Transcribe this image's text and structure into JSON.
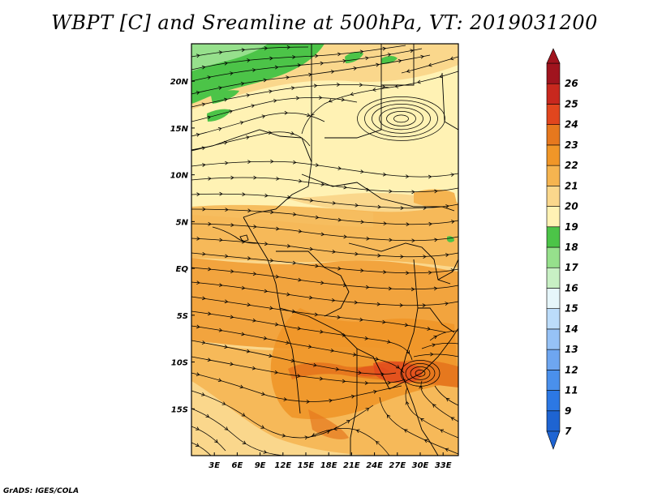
{
  "title": "WBPT [C] and Sreamline at 500hPa, VT: 2019031200",
  "footer": "GrADS: IGES/COLA",
  "lat_labels": [
    "20N",
    "15N",
    "10N",
    "5N",
    "EQ",
    "5S",
    "10S",
    "15S"
  ],
  "lat_values": [
    20,
    15,
    10,
    5,
    0,
    -5,
    -10,
    -15
  ],
  "lon_labels": [
    "3E",
    "6E",
    "9E",
    "12E",
    "15E",
    "18E",
    "21E",
    "24E",
    "27E",
    "30E",
    "33E"
  ],
  "lon_values": [
    3,
    6,
    9,
    12,
    15,
    18,
    21,
    24,
    27,
    30,
    33
  ],
  "colorbar": {
    "labels": [
      "7",
      "9",
      "11",
      "12",
      "13",
      "14",
      "15",
      "16",
      "17",
      "18",
      "19",
      "20",
      "21",
      "22",
      "23",
      "24",
      "25",
      "26"
    ],
    "colors": [
      "#1e64d2",
      "#2c78e4",
      "#4a90ec",
      "#6ea6f0",
      "#96c2f6",
      "#bcdcfa",
      "#e6f6fa",
      "#c8f0c4",
      "#96e08c",
      "#4cc448",
      "#fff2b4",
      "#fad78c",
      "#f5b450",
      "#f09628",
      "#e6781e",
      "#e1461e",
      "#c8281e",
      "#a0141e"
    ]
  },
  "features": {
    "extent": {
      "lon": [
        0,
        35
      ],
      "lat": [
        -20,
        24
      ]
    },
    "vortices": [
      {
        "name": "north-anticyclone",
        "lon": 27.5,
        "lat": 16
      },
      {
        "name": "south-cyclone",
        "lon": 30,
        "lat": -11.2
      }
    ],
    "colors": {
      "hot": "#e6781e",
      "warm": "#f09628",
      "mild": "#f5b450",
      "cool": "#fad78c",
      "pale": "#fff2b4",
      "green": "#4cc448",
      "lightgreen": "#96e08c"
    }
  }
}
